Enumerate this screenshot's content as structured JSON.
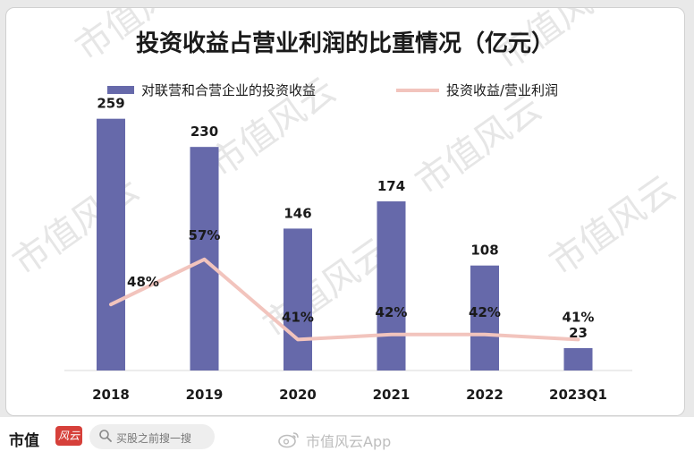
{
  "colors": {
    "bar": "#6669aa",
    "line": "#f2c4bd",
    "text": "#1a1a1a",
    "watermark": "#e6e6e6"
  },
  "watermark_text": "市值风云",
  "chart_data": {
    "type": "bar",
    "title": "投资收益占营业利润的比重情况（亿元）",
    "categories": [
      "2018",
      "2019",
      "2020",
      "2021",
      "2022",
      "2023Q1"
    ],
    "series": [
      {
        "name": "对联营和合营企业的投资收益",
        "type": "bar",
        "values": [
          259,
          230,
          146,
          174,
          108,
          23
        ],
        "labels": [
          "259",
          "230",
          "146",
          "174",
          "108",
          "23"
        ]
      },
      {
        "name": "投资收益/营业利润",
        "type": "line",
        "unit": "%",
        "values": [
          48,
          57,
          41,
          42,
          42,
          41
        ],
        "labels": [
          "48%",
          "57%",
          "41%",
          "42%",
          "42%",
          "41%"
        ]
      }
    ],
    "ylim_bar": [
      0,
      290
    ],
    "ylim_line": [
      0,
      100
    ],
    "legend": "top",
    "grid": false
  },
  "footer": {
    "brand": "市值",
    "brand_seal": "风云",
    "search_icon": "search-icon",
    "search_placeholder": "买股之前搜一搜",
    "weibo_icon": "weibo-icon",
    "weibo_account": "市值风云App"
  }
}
